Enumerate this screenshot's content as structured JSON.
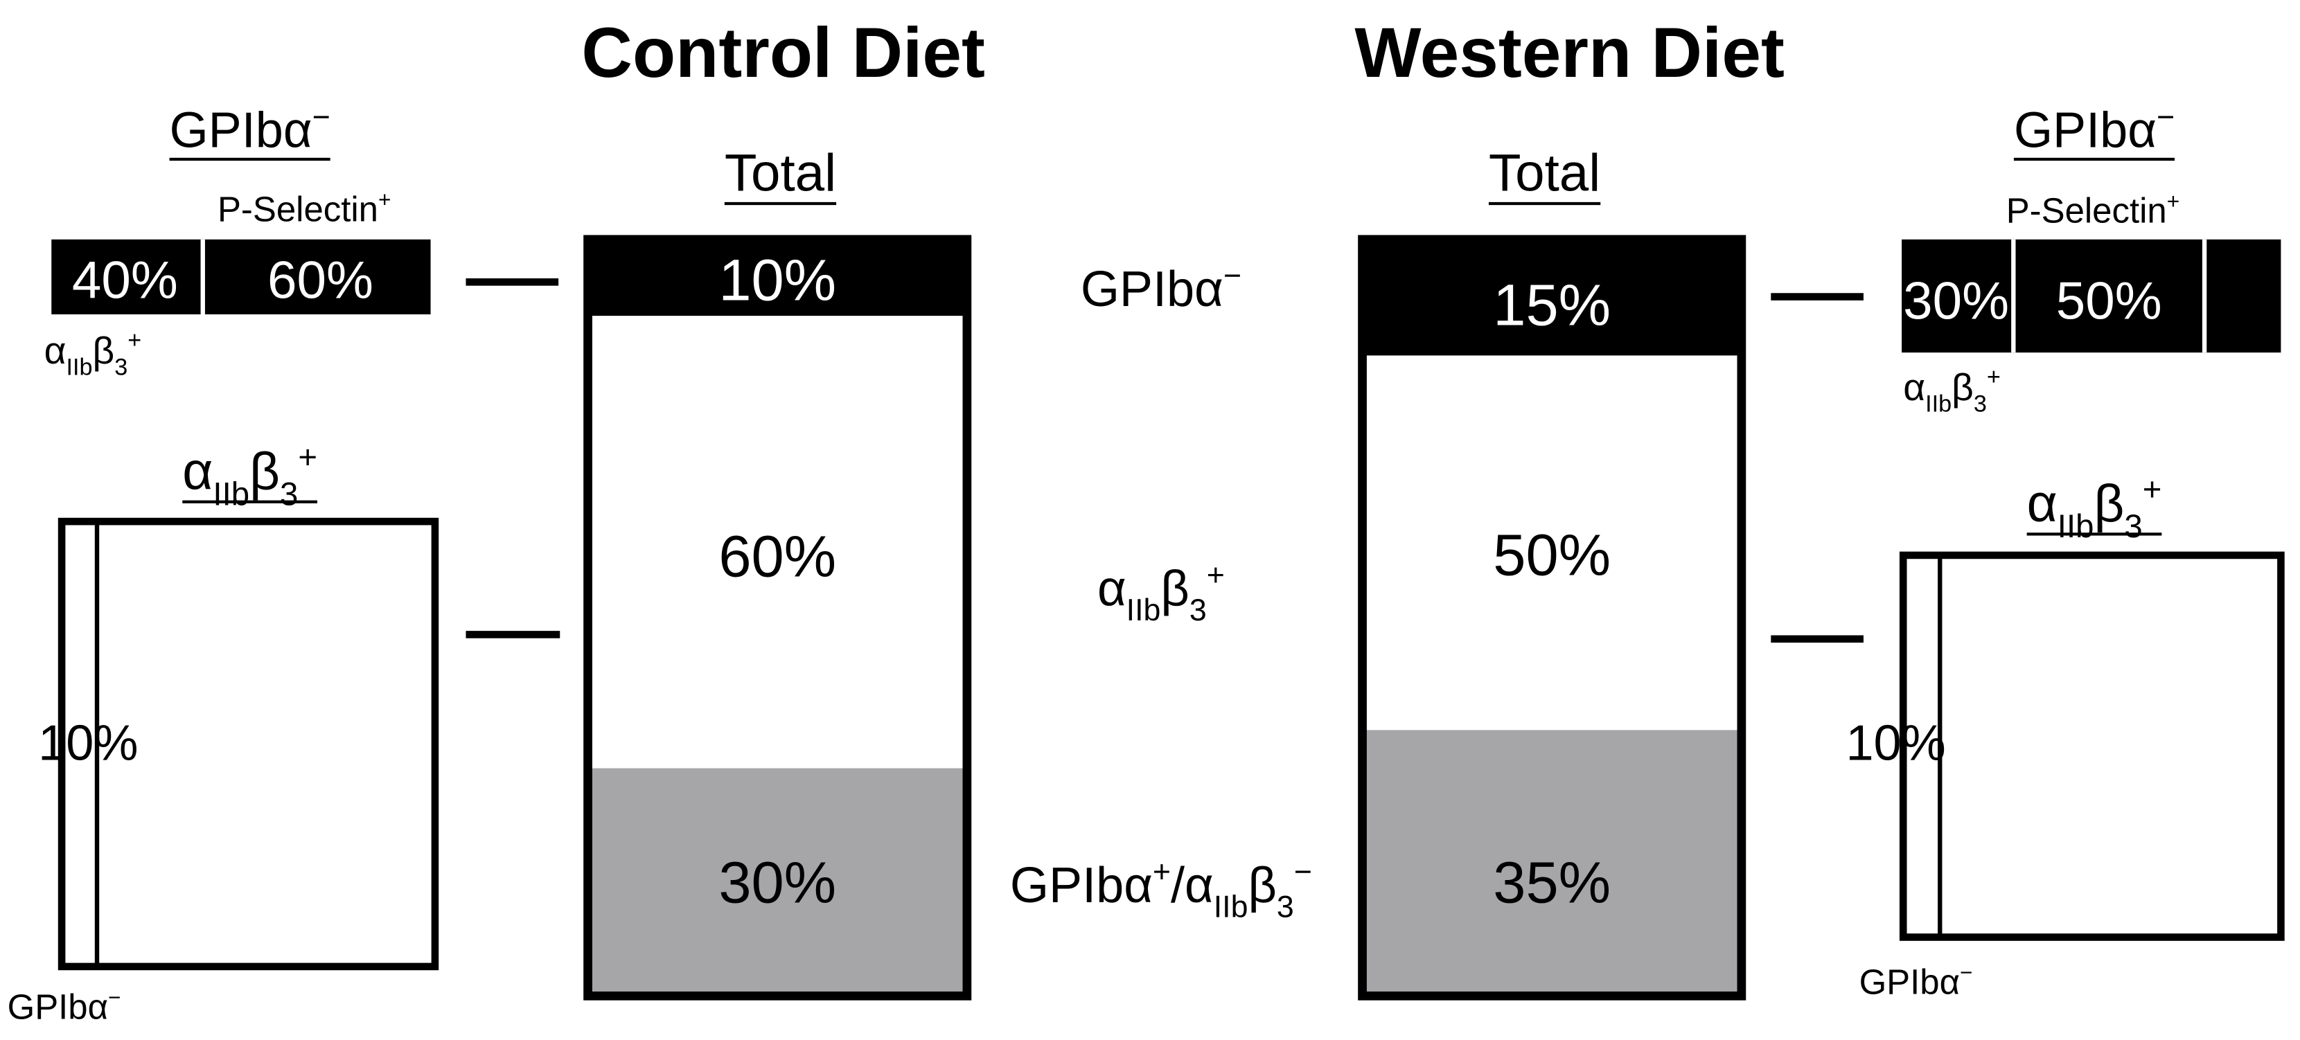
{
  "control": {
    "title": "Control Diet",
    "total": {
      "title": "Total",
      "segments": [
        "10%",
        "60%",
        "30%"
      ]
    },
    "gpib_neg": {
      "title": [
        "GPIbα",
        "−"
      ],
      "top_label": [
        "P-Selectin",
        "+"
      ],
      "values": [
        "40%",
        "60%"
      ],
      "bottom_label": [
        "α",
        "IIb",
        "β",
        "3",
        "+"
      ]
    },
    "aiib_pos": {
      "title": [
        "α",
        "IIb",
        "β",
        "3",
        "+"
      ],
      "value": "10%",
      "bottom_label": [
        "GPIbα",
        "−"
      ]
    }
  },
  "western": {
    "title": "Western Diet",
    "total": {
      "title": "Total",
      "segments": [
        "15%",
        "50%",
        "35%"
      ]
    },
    "gpib_neg": {
      "title": [
        "GPIbα",
        "−"
      ],
      "top_label": [
        "P-Selectin",
        "+"
      ],
      "values": [
        "30%",
        "50%"
      ],
      "bottom_label": [
        "α",
        "IIb",
        "β",
        "3",
        "+"
      ]
    },
    "aiib_pos": {
      "title": [
        "α",
        "IIb",
        "β",
        "3",
        "+"
      ],
      "value": "10%",
      "bottom_label": [
        "GPIbα",
        "−"
      ]
    }
  },
  "row_labels": [
    [
      "GPIbα",
      "−"
    ],
    [
      "α",
      "IIb",
      "β",
      "3",
      "+"
    ],
    [
      "GPIbα",
      "+",
      "/α",
      "IIb",
      "β",
      "3",
      "−"
    ]
  ]
}
